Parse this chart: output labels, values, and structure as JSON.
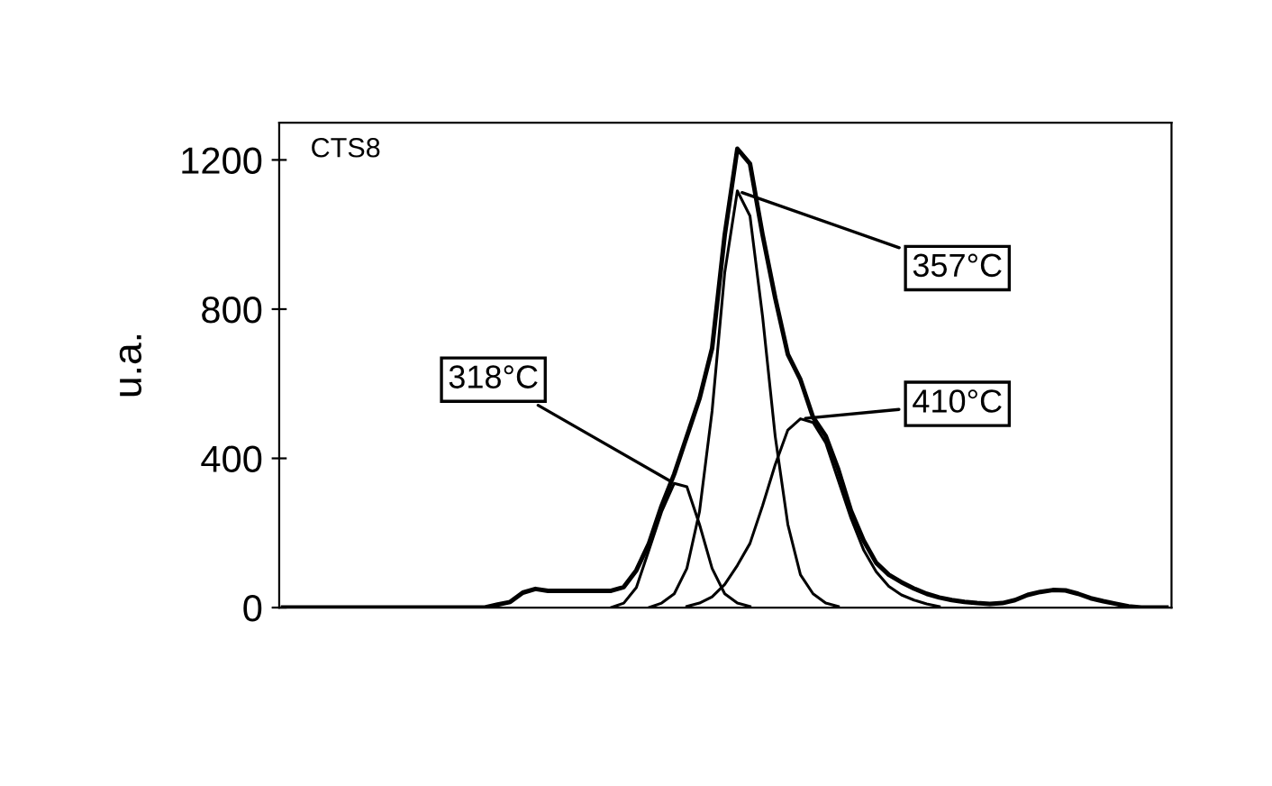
{
  "chart_data": {
    "type": "line",
    "title": "CTS8",
    "ylabel": "u.a.",
    "categories": [
      null,
      null,
      null,
      null,
      null,
      null,
      null,
      null,
      null,
      null,
      null,
      null,
      null,
      null,
      null,
      null,
      null,
      null,
      null,
      null,
      null,
      null,
      null,
      null,
      null,
      null,
      null,
      null,
      null,
      null,
      null,
      null,
      null,
      null,
      null,
      null,
      null,
      null,
      null,
      null,
      null,
      null,
      null,
      null,
      null,
      null,
      null,
      null,
      null,
      null,
      null,
      null,
      null,
      null,
      null,
      null,
      null,
      null,
      null,
      null,
      null,
      null,
      null,
      null,
      null,
      null,
      null,
      null,
      null,
      null,
      null
    ],
    "series": [
      {
        "color": "#000000",
        "values": [
          0,
          0,
          0,
          0,
          0,
          0,
          0,
          0,
          0,
          0,
          0,
          0,
          0,
          0,
          0,
          0,
          0,
          8,
          15,
          40,
          50,
          45,
          45,
          45,
          45,
          45,
          45,
          55,
          100,
          172,
          273,
          358,
          459,
          560,
          695,
          999,
          1230,
          1190,
          999,
          830,
          679,
          611,
          510,
          460,
          370,
          260,
          180,
          120,
          88,
          68,
          51,
          37,
          27,
          20,
          15,
          12,
          10,
          12,
          20,
          34,
          42,
          47,
          46,
          37,
          25,
          17,
          10,
          3,
          0,
          0,
          0
        ]
      },
      {
        "color": "#000000",
        "values": [
          null,
          null,
          null,
          null,
          null,
          null,
          null,
          null,
          null,
          null,
          null,
          null,
          null,
          null,
          null,
          null,
          null,
          null,
          null,
          null,
          null,
          null,
          null,
          null,
          null,
          null,
          0,
          12,
          54,
          155,
          257,
          333,
          324,
          223,
          105,
          37,
          12,
          3,
          null,
          null,
          null,
          null,
          null,
          null,
          null,
          null,
          null,
          null,
          null,
          null,
          null,
          null,
          null,
          null,
          null,
          null,
          null,
          null,
          null,
          null,
          null,
          null,
          null,
          null,
          null,
          null,
          null,
          null,
          null,
          null,
          null
        ]
      },
      {
        "color": "#000000",
        "values": [
          null,
          null,
          null,
          null,
          null,
          null,
          null,
          null,
          null,
          null,
          null,
          null,
          null,
          null,
          null,
          null,
          null,
          null,
          null,
          null,
          null,
          null,
          null,
          null,
          null,
          null,
          null,
          null,
          null,
          0,
          12,
          37,
          105,
          257,
          527,
          898,
          1117,
          1050,
          780,
          459,
          223,
          88,
          37,
          12,
          3,
          null,
          null,
          null,
          null,
          null,
          null,
          null,
          null,
          null,
          null,
          null,
          null,
          null,
          null,
          null,
          null,
          null,
          null,
          null,
          null,
          null,
          null,
          null,
          null,
          null,
          null
        ]
      },
      {
        "color": "#000000",
        "values": [
          null,
          null,
          null,
          null,
          null,
          null,
          null,
          null,
          null,
          null,
          null,
          null,
          null,
          null,
          null,
          null,
          null,
          null,
          null,
          null,
          null,
          null,
          null,
          null,
          null,
          null,
          null,
          null,
          null,
          null,
          null,
          null,
          3,
          12,
          29,
          62,
          113,
          172,
          273,
          383,
          476,
          506,
          496,
          442,
          341,
          240,
          155,
          96,
          57,
          34,
          20,
          10,
          3,
          null,
          null,
          null,
          null,
          null,
          null,
          null,
          null,
          null,
          null,
          null,
          null,
          null,
          null,
          null,
          null,
          null,
          null
        ]
      }
    ],
    "annotations": [
      "318°C",
      "357°C",
      "410°C"
    ],
    "ylim": [
      0,
      1300
    ],
    "yticks": [
      0,
      400,
      800,
      1200
    ],
    "tick_labels": "y",
    "grid": false,
    "legend": false
  }
}
